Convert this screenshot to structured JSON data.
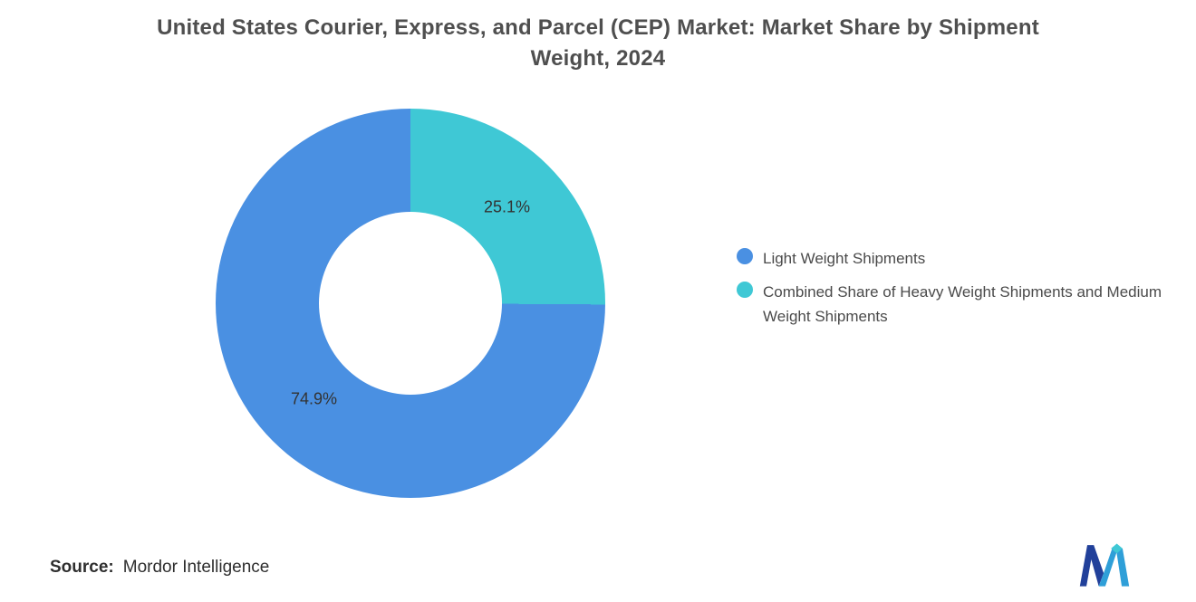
{
  "title": {
    "text": "United States Courier, Express, and Parcel (CEP) Market: Market Share by Shipment Weight, 2024"
  },
  "chart_data": {
    "type": "pie",
    "subtype": "donut",
    "title": "United States Courier, Express, and Parcel (CEP) Market: Market Share by Shipment Weight, 2024",
    "slices": [
      {
        "label": "Combined Share of Heavy Weight Shipments and Medium Weight Shipments",
        "value": 25.1,
        "data_label": "25.1%",
        "color": "#3fc8d5"
      },
      {
        "label": "Light Weight Shipments",
        "value": 74.9,
        "data_label": "74.9%",
        "color": "#4a90e2"
      }
    ],
    "start_angle_deg": 0,
    "direction": "clockwise",
    "hole_ratio": 0.47,
    "legend_position": "right",
    "data_labels_shown": true
  },
  "legend": {
    "items": [
      {
        "label": "Light Weight Shipments",
        "color": "#4a90e2"
      },
      {
        "label": "Combined Share of Heavy Weight Shipments and Medium Weight Shipments",
        "color": "#3fc8d5"
      }
    ]
  },
  "source": {
    "label": "Source:",
    "value": "Mordor Intelligence"
  },
  "colors": {
    "title_text": "#4f4f4f",
    "legend_text": "#4a4a4a",
    "logo_dark_blue": "#21409a",
    "logo_light_blue": "#2f9fd8",
    "logo_teal": "#3fc8d5"
  }
}
